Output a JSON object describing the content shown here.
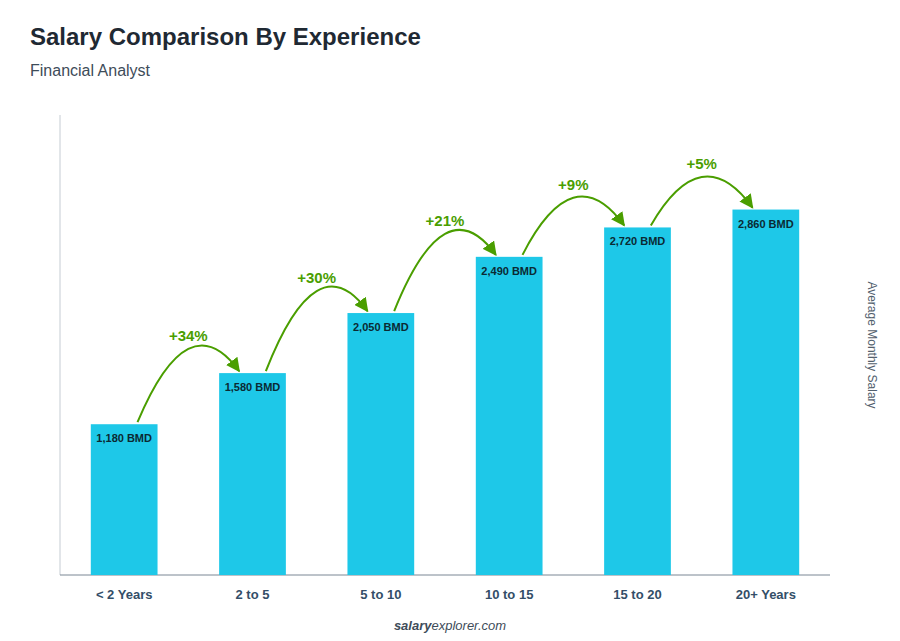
{
  "chart_data": {
    "type": "bar",
    "title": "Salary Comparison By Experience",
    "subtitle": "Financial Analyst",
    "categories": [
      "< 2 Years",
      "2 to 5",
      "5 to 10",
      "10 to 15",
      "15 to 20",
      "20+ Years"
    ],
    "values": [
      1180,
      1580,
      2050,
      2490,
      2720,
      2860
    ],
    "value_labels": [
      "1,180 BMD",
      "1,580 BMD",
      "2,050 BMD",
      "2,490 BMD",
      "2,720 BMD",
      "2,860 BMD"
    ],
    "data_labels": true,
    "color": "#1EC8E8",
    "ylim": [
      0,
      3600
    ],
    "tick_labels": "x",
    "y_label": "Average Monthly Salary",
    "annotations": [
      "+34%",
      "+30%",
      "+21%",
      "+9%",
      "+5%"
    ],
    "footer": [
      "salary",
      "explorer.com"
    ]
  }
}
